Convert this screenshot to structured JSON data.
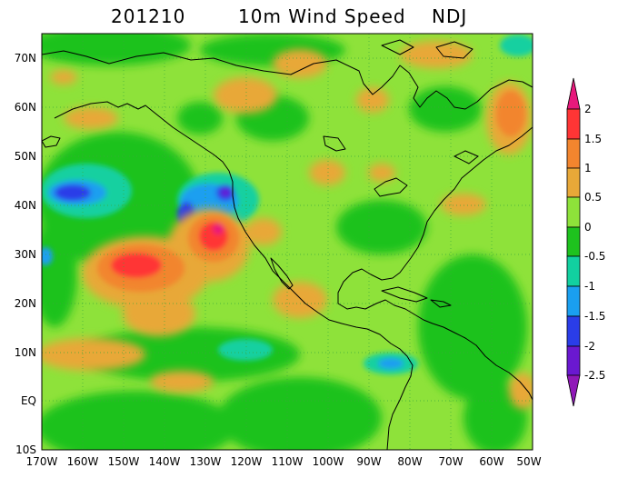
{
  "title": {
    "date": "201210",
    "variable": "10m Wind Speed",
    "season": "NDJ"
  },
  "map": {
    "region": {
      "lon_min": -170,
      "lon_max": -50,
      "lat_min": -10,
      "lat_max": 75
    },
    "gridlines": "dotted",
    "lat_labels": [
      "70N",
      "60N",
      "50N",
      "40N",
      "30N",
      "20N",
      "10N",
      "EQ",
      "10S"
    ],
    "lon_labels": [
      "170W",
      "160W",
      "150W",
      "140W",
      "130W",
      "120W",
      "110W",
      "100W",
      "90W",
      "80W",
      "70W",
      "60W",
      "50W"
    ]
  },
  "colorbar": {
    "labels": [
      "2",
      "1.5",
      "1",
      "0.5",
      "0",
      "-0.5",
      "-1",
      "-1.5",
      "-2",
      "-2.5"
    ],
    "colors": {
      "top_arrow": "#e8197c",
      "gt_1_5": "#ff3535",
      "1_to_1_5": "#f2852e",
      "0_5_to_1": "#e8a838",
      "0_to_0_5": "#8ee23a",
      "-0_5_to_0": "#1ec21e",
      "-1_to_-0_5": "#12d0a0",
      "-1_5_to_-1": "#1a9ff0",
      "-2_to_-1_5": "#2a3de8",
      "-2_5_to_-2": "#6a18d0",
      "bottom_arrow": "#9018b8"
    }
  }
}
